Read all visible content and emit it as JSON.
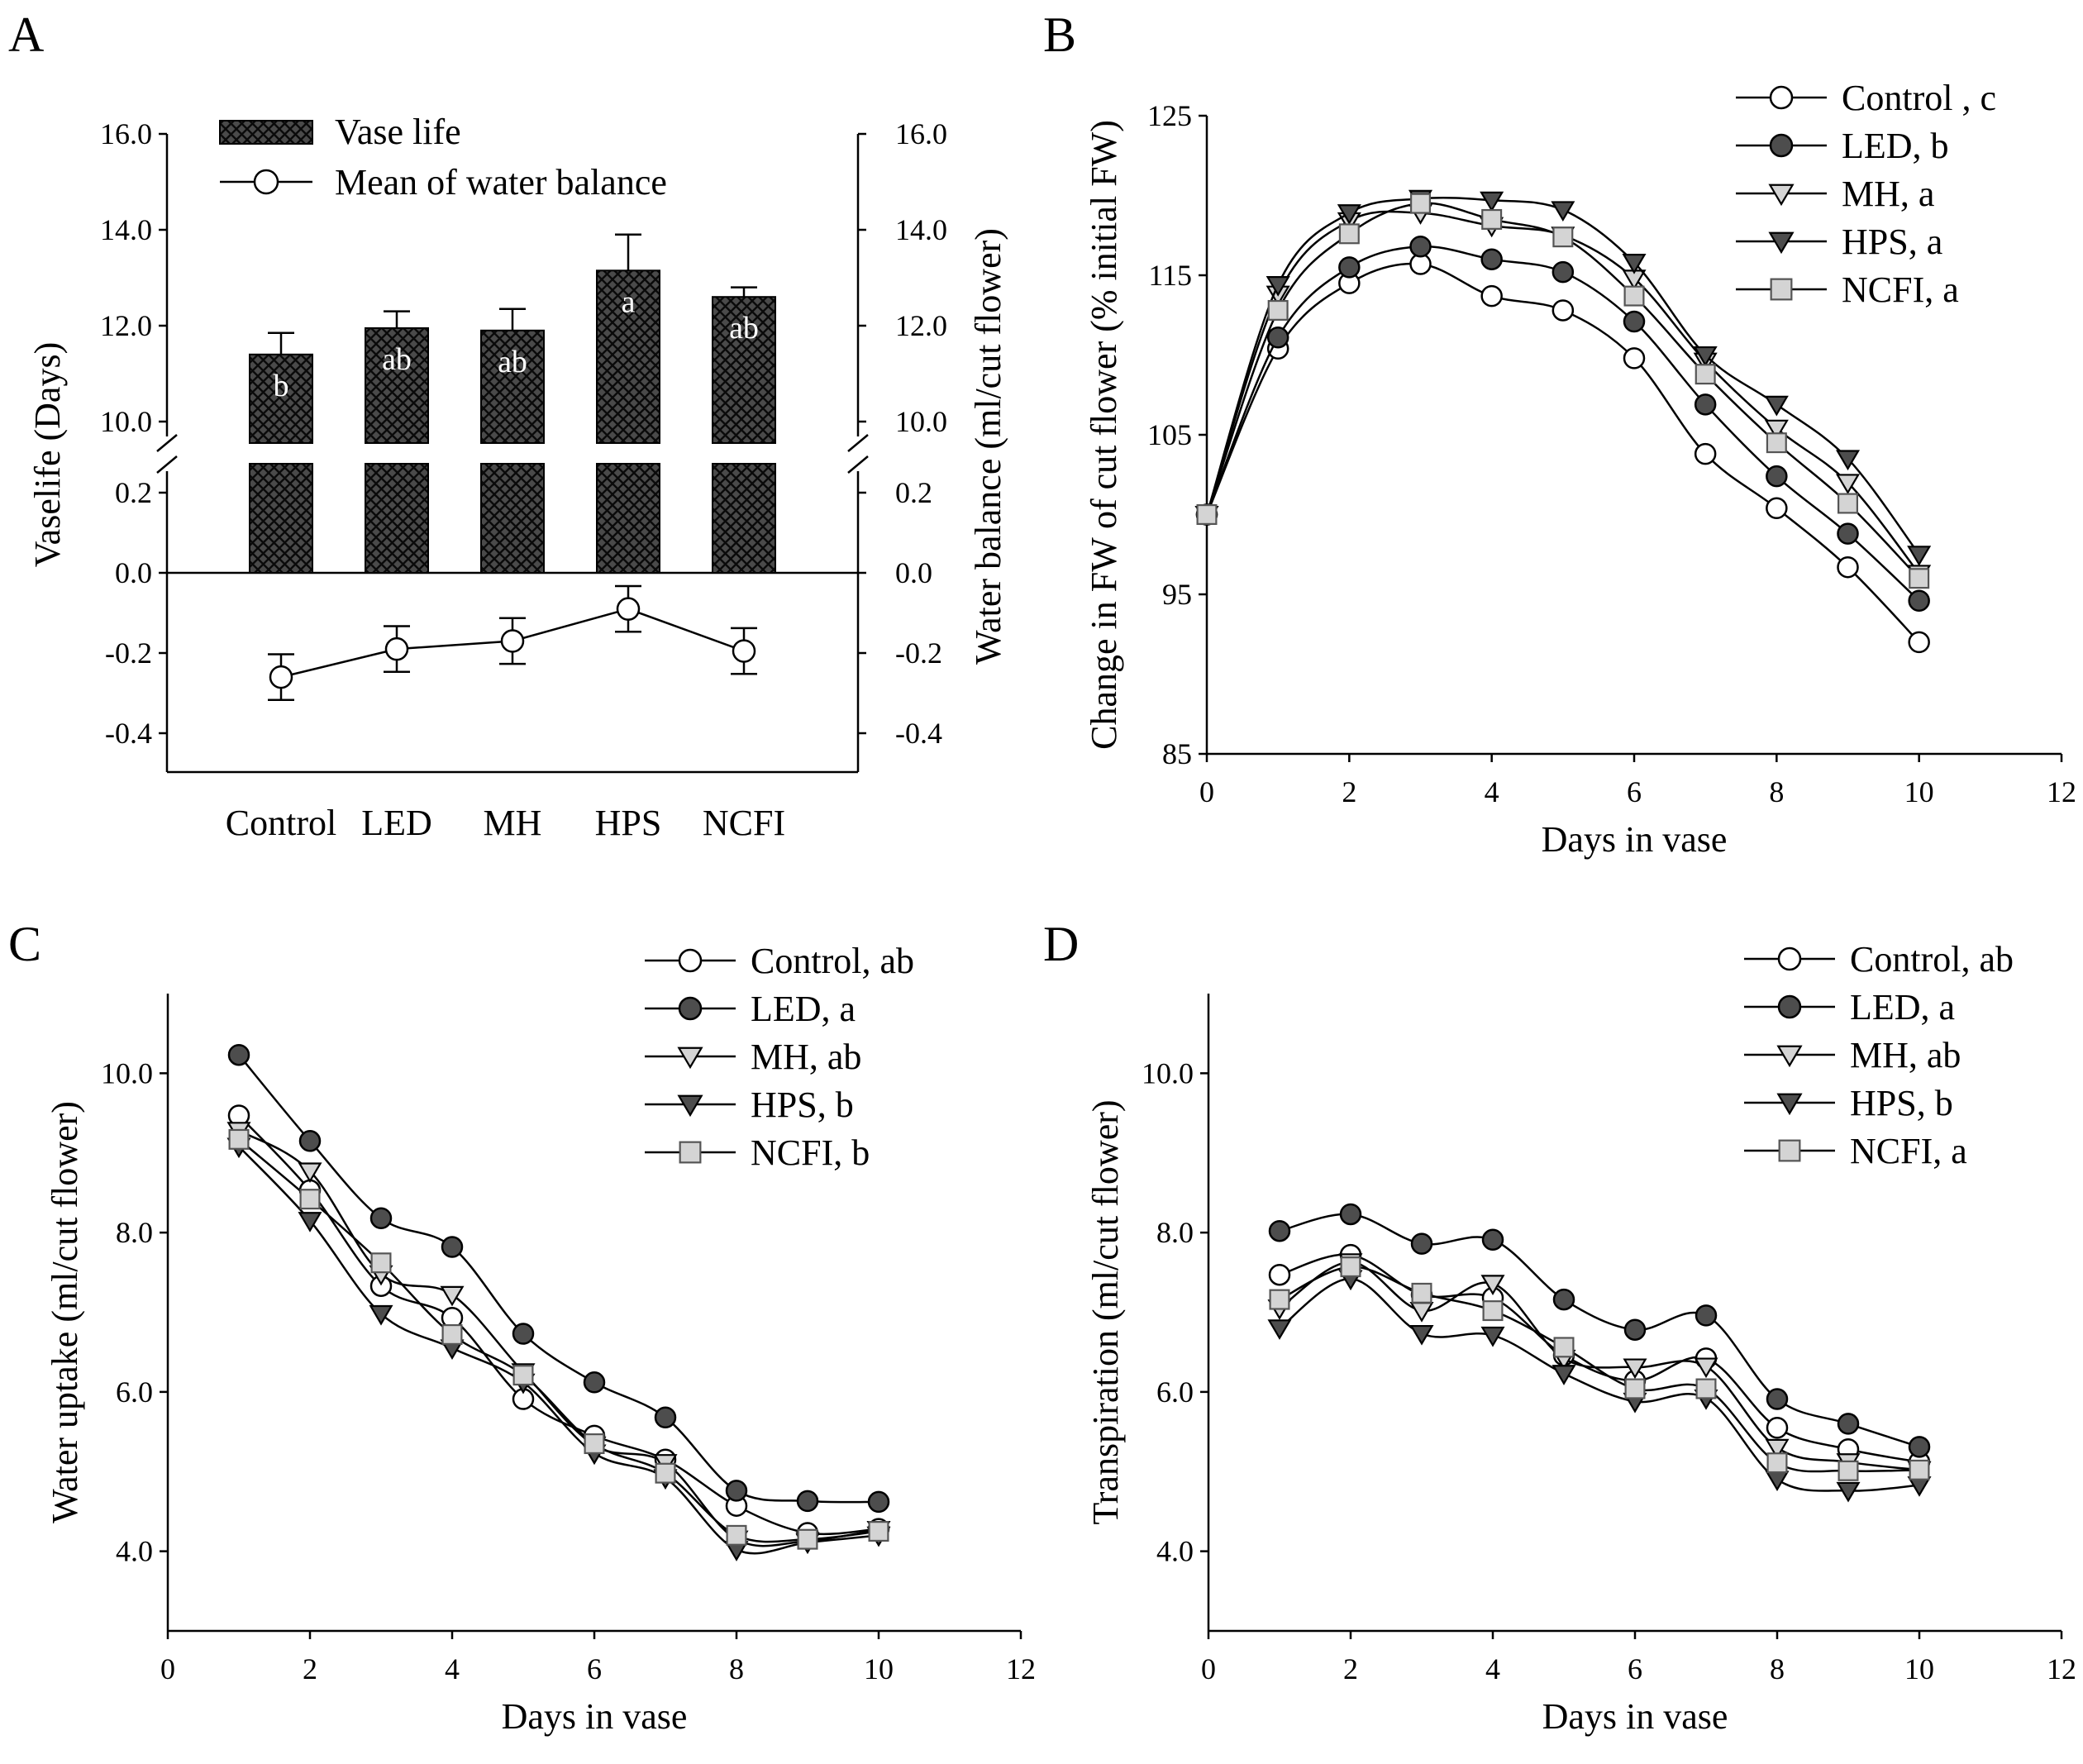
{
  "chart_data": [
    {
      "panel": "A",
      "type": "bar",
      "categories": [
        "Control",
        "LED",
        "MH",
        "HPS",
        "NCFI"
      ],
      "ylabel": "Vaselife (Days)",
      "y2label": "Water balance (ml/cut flower)",
      "ylim_upper": [
        9.5,
        16.0
      ],
      "ylim_lower": [
        -0.5,
        0.3
      ],
      "yticks_upper": [
        "10.0",
        "12.0",
        "14.0",
        "16.0"
      ],
      "yticks_lower": [
        "-0.4",
        "-0.2",
        "0.0",
        "0.2"
      ],
      "legend_position": "top-left",
      "series": [
        {
          "name": "Vase life",
          "kind": "bar",
          "values": [
            11.4,
            11.95,
            11.9,
            13.15,
            12.6
          ],
          "errors": [
            0.45,
            0.35,
            0.45,
            0.75,
            0.2
          ],
          "letters": [
            "b",
            "ab",
            "ab",
            "a",
            "ab"
          ]
        },
        {
          "name": "Mean of water balance",
          "kind": "line",
          "marker": "open-circle",
          "values": [
            -0.26,
            -0.19,
            -0.17,
            -0.09,
            -0.195
          ],
          "errors": [
            0.057,
            0.057,
            0.057,
            0.057,
            0.057
          ]
        }
      ]
    },
    {
      "panel": "B",
      "type": "line",
      "xlabel": "Days in vase",
      "ylabel": "Change in FW of cut flower (% initial FW)",
      "xlim": [
        0,
        12
      ],
      "ylim": [
        85,
        125
      ],
      "xticks": [
        "0",
        "2",
        "4",
        "6",
        "8",
        "10",
        "12"
      ],
      "yticks": [
        "85",
        "95",
        "105",
        "115",
        "125"
      ],
      "legend_position": "top-right",
      "x": [
        0,
        1,
        2,
        3,
        4,
        5,
        6,
        7,
        8,
        9,
        10
      ],
      "series": [
        {
          "name": "Control , c",
          "marker": "open-circle",
          "values": [
            100,
            110.4,
            114.5,
            115.7,
            113.7,
            112.8,
            109.8,
            103.8,
            100.4,
            96.7,
            92
          ]
        },
        {
          "name": "LED, b",
          "marker": "filled-circle",
          "values": [
            100,
            111.1,
            115.5,
            116.8,
            116,
            115.2,
            112.1,
            106.9,
            102.4,
            98.8,
            94.6
          ]
        },
        {
          "name": "MH, a",
          "marker": "open-triangle-down",
          "values": [
            100,
            113.8,
            118.4,
            118.9,
            118.1,
            117.5,
            114.8,
            109.6,
            105.4,
            102,
            96.3
          ]
        },
        {
          "name": "HPS, a",
          "marker": "filled-triangle-down",
          "values": [
            100,
            114.4,
            118.9,
            119.8,
            119.7,
            119.1,
            115.8,
            110,
            106.9,
            103.5,
            97.5
          ]
        },
        {
          "name": "NCFI, a",
          "marker": "open-square",
          "values": [
            100,
            112.8,
            117.6,
            119.5,
            118.5,
            117.4,
            113.7,
            108.8,
            104.5,
            100.7,
            96
          ]
        }
      ]
    },
    {
      "panel": "C",
      "type": "line",
      "xlabel": "Days in vase",
      "ylabel": "Water uptake (ml/cut flower)",
      "xlim": [
        0,
        12
      ],
      "ylim": [
        3,
        11
      ],
      "xticks": [
        "0",
        "2",
        "4",
        "6",
        "8",
        "10",
        "12"
      ],
      "yticks": [
        "4.0",
        "6.0",
        "8.0",
        "10.0"
      ],
      "legend_position": "top-right",
      "x": [
        1,
        2,
        3,
        4,
        5,
        6,
        7,
        8,
        9,
        10
      ],
      "series": [
        {
          "name": "Control, ab",
          "marker": "open-circle",
          "values": [
            9.47,
            8.53,
            7.33,
            6.93,
            5.91,
            5.45,
            5.15,
            4.57,
            4.23,
            4.28
          ]
        },
        {
          "name": "LED, a",
          "marker": "filled-circle",
          "values": [
            10.23,
            9.15,
            8.18,
            7.82,
            6.73,
            6.12,
            5.68,
            4.76,
            4.63,
            4.62
          ]
        },
        {
          "name": "MH, ab",
          "marker": "open-triangle-down",
          "values": [
            9.28,
            8.77,
            7.48,
            7.22,
            6.25,
            5.33,
            5.11,
            4.15,
            4.13,
            4.27
          ]
        },
        {
          "name": "HPS, b",
          "marker": "filled-triangle-down",
          "values": [
            9.08,
            8.15,
            6.98,
            6.55,
            6.12,
            5.23,
            4.92,
            4.02,
            4.11,
            4.2
          ]
        },
        {
          "name": "NCFI, b",
          "marker": "open-square",
          "values": [
            9.17,
            8.42,
            7.62,
            6.72,
            6.21,
            5.35,
            4.98,
            4.2,
            4.15,
            4.25
          ]
        }
      ]
    },
    {
      "panel": "D",
      "type": "line",
      "xlabel": "Days in vase",
      "ylabel": "Transpiration (ml/cut flower)",
      "xlim": [
        0,
        12
      ],
      "ylim": [
        3,
        11
      ],
      "xticks": [
        "0",
        "2",
        "4",
        "6",
        "8",
        "10",
        "12"
      ],
      "yticks": [
        "4.0",
        "6.0",
        "8.0",
        "10.0"
      ],
      "legend_position": "top-right",
      "x": [
        1,
        2,
        3,
        4,
        5,
        6,
        7,
        8,
        9,
        10
      ],
      "series": [
        {
          "name": "Control, ab",
          "marker": "open-circle",
          "values": [
            7.47,
            7.72,
            7.22,
            7.18,
            6.46,
            6.14,
            6.42,
            5.55,
            5.28,
            5.12
          ]
        },
        {
          "name": "LED, a",
          "marker": "filled-circle",
          "values": [
            8.02,
            8.23,
            7.86,
            7.91,
            7.16,
            6.78,
            6.96,
            5.91,
            5.6,
            5.31
          ]
        },
        {
          "name": "MH, ab",
          "marker": "open-triangle-down",
          "values": [
            7.05,
            7.63,
            7.02,
            7.36,
            6.42,
            6.31,
            6.32,
            5.3,
            5.12,
            5.02
          ]
        },
        {
          "name": "HPS, b",
          "marker": "filled-triangle-down",
          "values": [
            6.8,
            7.42,
            6.73,
            6.71,
            6.23,
            5.88,
            5.92,
            4.9,
            4.76,
            4.83
          ]
        },
        {
          "name": "NCFI, a",
          "marker": "open-square",
          "values": [
            7.16,
            7.57,
            7.24,
            7.02,
            6.56,
            6.04,
            6.04,
            5.11,
            5.01,
            5.02
          ]
        }
      ]
    }
  ],
  "panel_letters": [
    "A",
    "B",
    "C",
    "D"
  ],
  "colors": {
    "bar_fill": "#4a4a4a",
    "bar_hatch": "#0a0a0a",
    "filled_marker": "#4d4d4d",
    "open_square_fill": "#d4d4d4",
    "open_marker_fill": "#ffffff",
    "axis": "#000000"
  }
}
